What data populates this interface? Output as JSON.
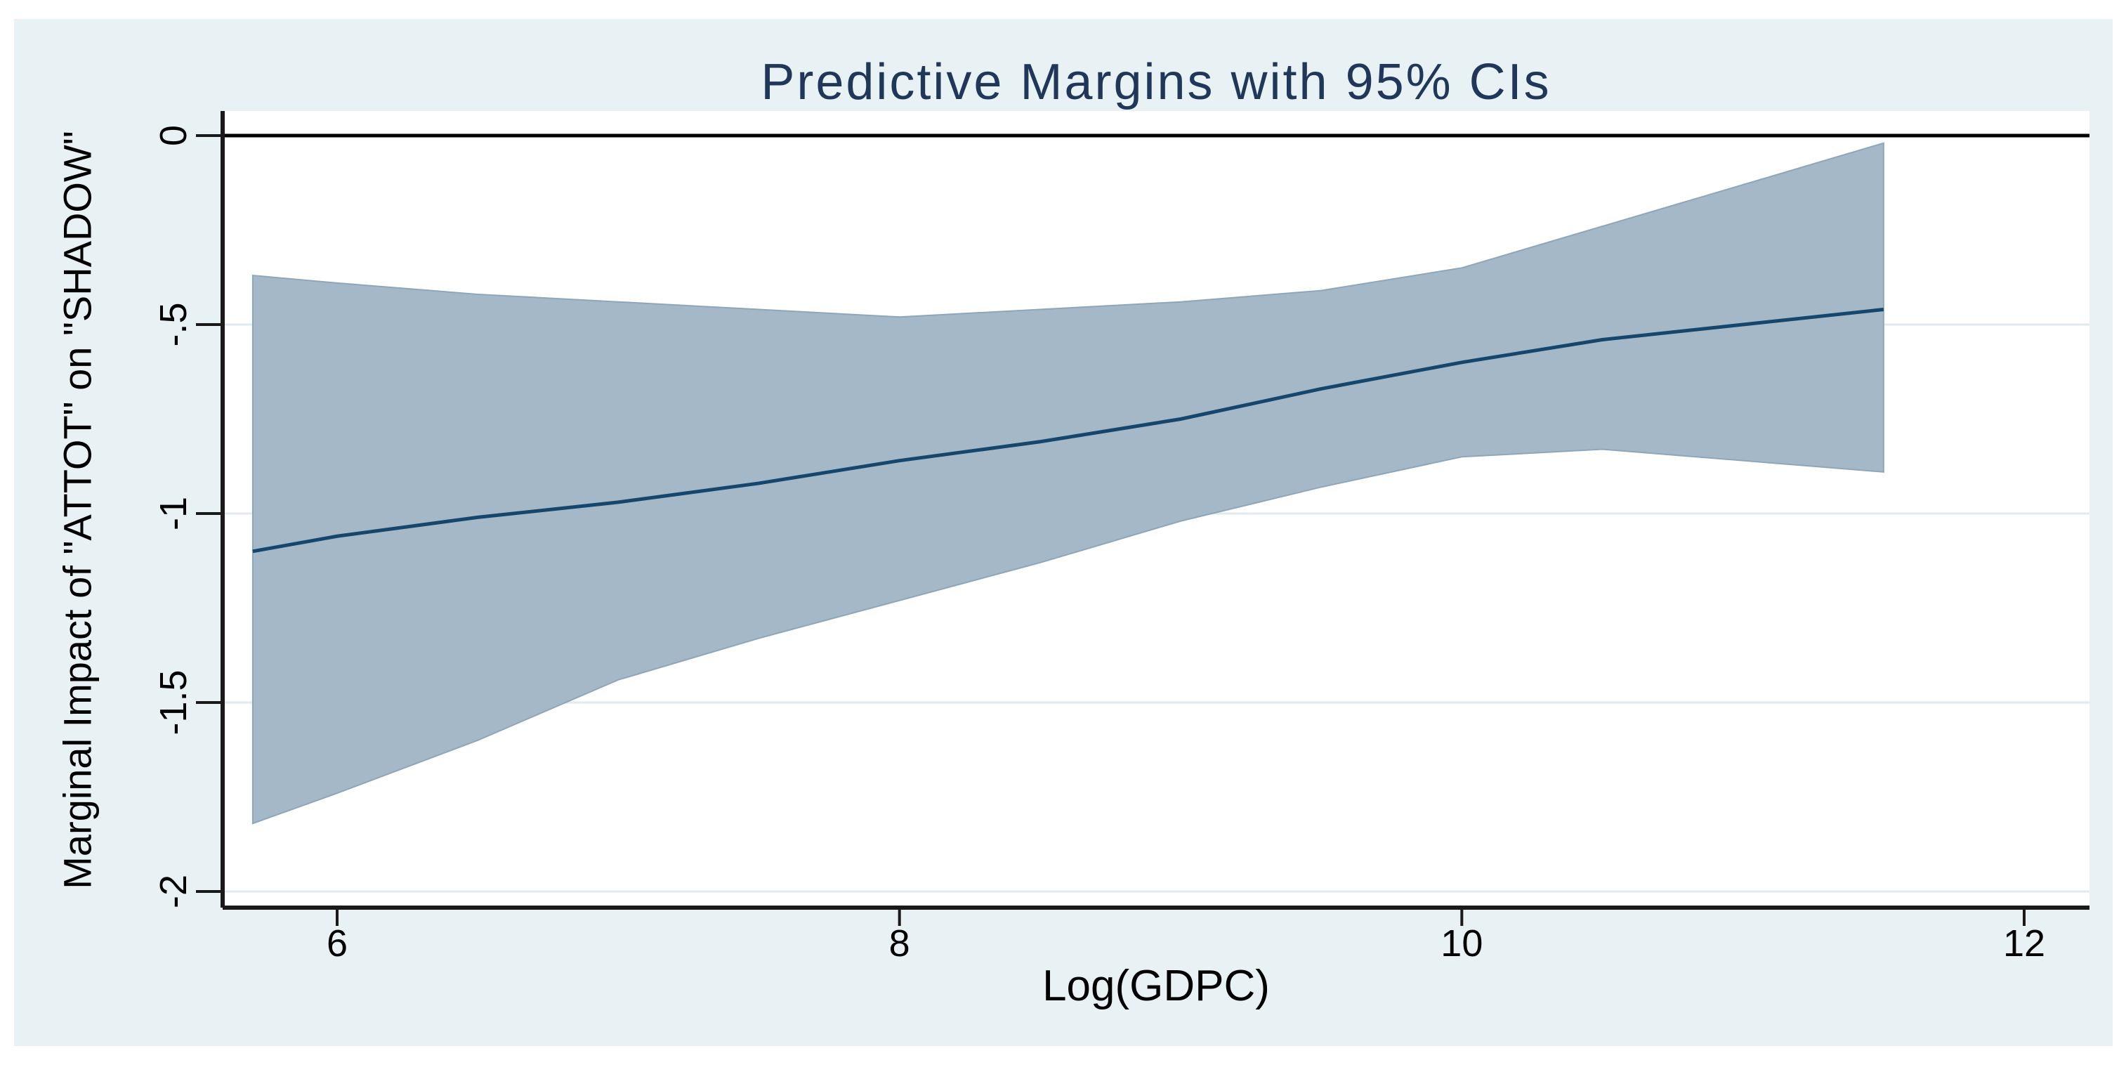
{
  "chart_data": {
    "type": "area",
    "title": "Predictive Margins with 95% CIs",
    "xlabel": "Log(GDPC)",
    "ylabel": "Marginal Impact of \"ATTOT\" on \"SHADOW\"",
    "xlim": [
      5.59,
      12.27
    ],
    "ylim": [
      -2.04,
      0.07
    ],
    "grid": true,
    "legend_position": "none",
    "zero_reference_line": 0,
    "x_ticks": {
      "values": [
        6,
        8,
        10,
        12
      ],
      "labels": [
        "6",
        "8",
        "10",
        "12"
      ]
    },
    "y_ticks": {
      "values": [
        0,
        -0.5,
        -1,
        -1.5,
        -2
      ],
      "labels": [
        "0",
        "-.5",
        "-1",
        "-1.5",
        "-2"
      ]
    },
    "x": [
      5.7,
      6.0,
      6.5,
      7.0,
      7.5,
      8.0,
      8.5,
      9.0,
      9.5,
      10.0,
      10.5,
      11.0,
      11.5
    ],
    "series": [
      {
        "name": "Predictive margin line",
        "values": [
          -1.1,
          -1.06,
          -1.01,
          -0.97,
          -0.92,
          -0.86,
          -0.81,
          -0.75,
          -0.67,
          -0.6,
          -0.54,
          -0.5,
          -0.46
        ]
      },
      {
        "name": "95% CI upper bound",
        "values": [
          -0.37,
          -0.39,
          -0.42,
          -0.44,
          -0.46,
          -0.48,
          -0.46,
          -0.44,
          -0.41,
          -0.35,
          -0.24,
          -0.13,
          -0.02
        ]
      },
      {
        "name": "95% CI lower bound",
        "values": [
          -1.82,
          -1.74,
          -1.6,
          -1.44,
          -1.33,
          -1.23,
          -1.13,
          -1.02,
          -0.93,
          -0.85,
          -0.83,
          -0.86,
          -0.89
        ]
      }
    ],
    "colors": {
      "band_fill": "#a4b8c8",
      "band_edge": "#8fa6b9",
      "line": "#15466d",
      "title_text": "#21375a",
      "plot_background": "#ffffff",
      "page_background": "#e8f1f3",
      "grid_line": "#dfebee",
      "axis": "#1a1a1a",
      "zero_line": "#000000"
    }
  }
}
